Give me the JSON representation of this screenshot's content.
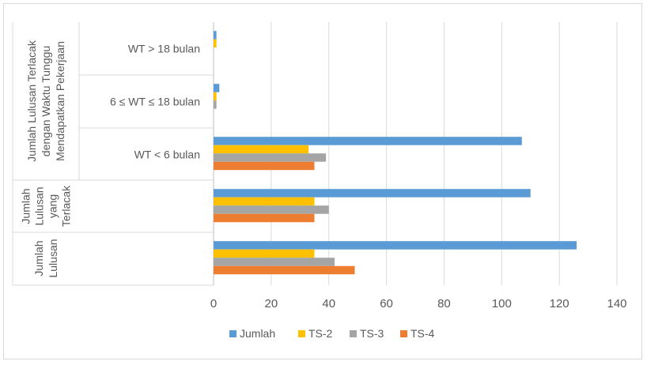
{
  "chart_data": {
    "type": "bar",
    "orientation": "horizontal",
    "categories": [
      {
        "label": "WT > 18 bulan",
        "group": "Jumlah Lulusan Terlacak dengan Waktu Tunggu Mendapatkan Pekerjaan"
      },
      {
        "label": "6 ≤ WT ≤ 18 bulan",
        "group": "Jumlah Lulusan Terlacak dengan Waktu Tunggu Mendapatkan Pekerjaan"
      },
      {
        "label": "WT < 6 bulan",
        "group": "Jumlah Lulusan Terlacak dengan Waktu Tunggu Mendapatkan Pekerjaan"
      },
      {
        "label": "",
        "group": "Jumlah Lulusan yang Terlacak"
      },
      {
        "label": "",
        "group": "Jumlah Lulusan"
      }
    ],
    "groups": [
      {
        "label_lines": [
          "Jumlah Lulusan Terlacak",
          "dengan Waktu Tunggu",
          "Mendapatkan Pekerjaan"
        ]
      },
      {
        "label_lines": [
          "Jumlah",
          "Lulusan",
          "yang",
          "Terlacak"
        ]
      },
      {
        "label_lines": [
          "Jumlah",
          "Lulusan"
        ]
      }
    ],
    "series": [
      {
        "name": "Jumlah",
        "color": "#5b9bd5",
        "values": [
          1,
          2,
          107,
          110,
          126
        ]
      },
      {
        "name": "TS-2",
        "color": "#ffc000",
        "values": [
          1,
          1,
          33,
          35,
          35
        ]
      },
      {
        "name": "TS-3",
        "color": "#a5a5a5",
        "values": [
          0,
          1,
          39,
          40,
          42
        ]
      },
      {
        "name": "TS-4",
        "color": "#ed7d31",
        "values": [
          0,
          0,
          35,
          35,
          49
        ]
      }
    ],
    "xlim": [
      0,
      140
    ],
    "xticks": [
      0,
      20,
      40,
      60,
      80,
      100,
      120,
      140
    ],
    "grid": true,
    "legend": "bottom"
  }
}
